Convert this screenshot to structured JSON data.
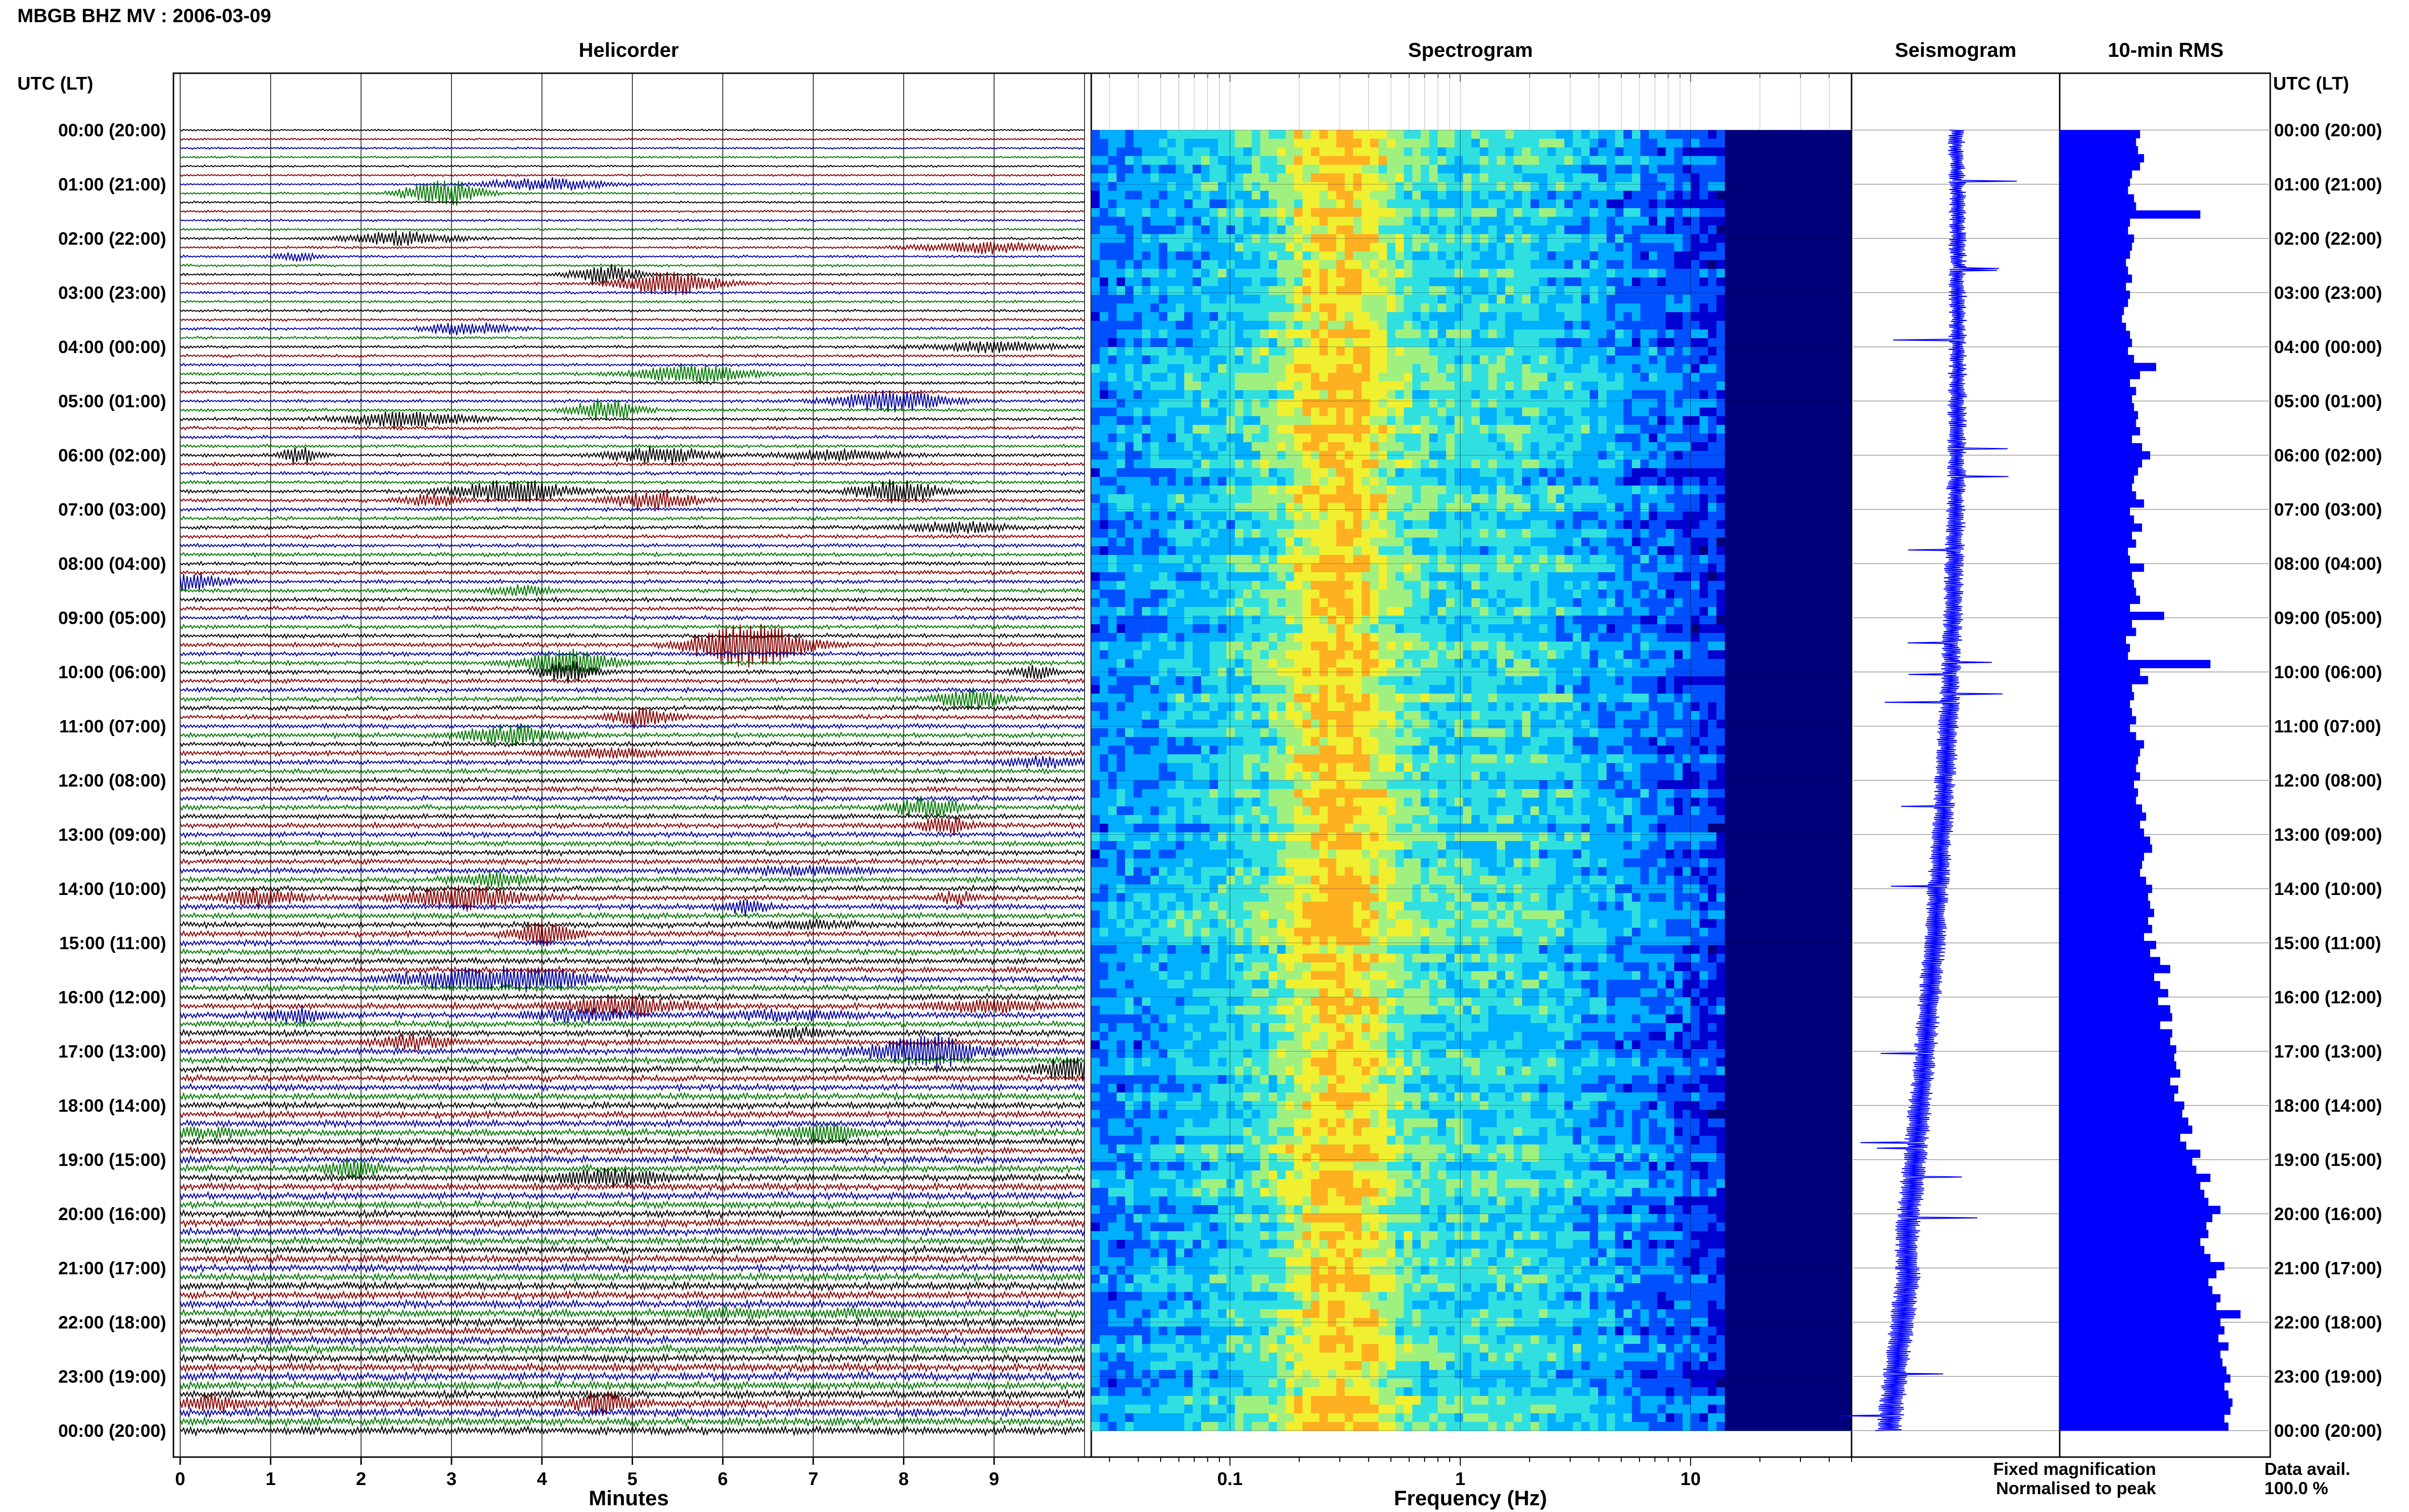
{
  "page": {
    "title": "MBGB BHZ MV : 2006-03-09",
    "utc_label_left": "UTC (LT)",
    "utc_label_right": "UTC (LT)"
  },
  "chart_data": [
    {
      "type": "line",
      "panel": "helicorder",
      "title": "Helicorder",
      "xlabel": "Minutes",
      "xlim": [
        0,
        10
      ],
      "x_ticks": [
        "0",
        "1",
        "2",
        "3",
        "4",
        "5",
        "6",
        "7",
        "8",
        "9"
      ],
      "y_tick_labels": [
        "00:00 (20:00)",
        "01:00 (21:00)",
        "02:00 (22:00)",
        "03:00 (23:00)",
        "04:00 (00:00)",
        "05:00 (01:00)",
        "06:00 (02:00)",
        "07:00 (03:00)",
        "08:00 (04:00)",
        "09:00 (05:00)",
        "10:00 (06:00)",
        "11:00 (07:00)",
        "12:00 (08:00)",
        "13:00 (09:00)",
        "14:00 (10:00)",
        "15:00 (11:00)",
        "16:00 (12:00)",
        "17:00 (13:00)",
        "18:00 (14:00)",
        "19:00 (15:00)",
        "20:00 (16:00)",
        "21:00 (17:00)",
        "22:00 (18:00)",
        "23:00 (19:00)",
        "00:00 (20:00)"
      ],
      "trace_colors": [
        "#000000",
        "#8b0000",
        "#0000a0",
        "#007a00"
      ],
      "lines_per_hour": 6,
      "grid": true
    },
    {
      "type": "heatmap",
      "panel": "spectrogram",
      "title": "Spectrogram",
      "xlabel": "Frequency (Hz)",
      "x_scale": "log",
      "xlim": [
        0.025,
        50
      ],
      "x_tick_labels": [
        "0.1",
        "1",
        "10"
      ],
      "x_tick_values": [
        0.1,
        1,
        10
      ],
      "colors": [
        "#00007a",
        "#0000d0",
        "#0050ff",
        "#00b0ff",
        "#30e0e0",
        "#a0f080",
        "#f0f030",
        "#ffb020"
      ]
    },
    {
      "type": "line",
      "panel": "seismogram",
      "title": "Seismogram",
      "color": "#0000ff"
    },
    {
      "type": "bar",
      "panel": "rms",
      "title": "10-min RMS",
      "color": "#0000ff",
      "values": [
        40,
        38,
        39,
        42,
        40,
        36,
        35,
        34,
        37,
        38,
        70,
        35,
        34,
        37,
        36,
        35,
        33,
        34,
        36,
        33,
        35,
        34,
        32,
        31,
        33,
        35,
        36,
        34,
        37,
        48,
        40,
        35,
        38,
        36,
        37,
        39,
        38,
        40,
        36,
        41,
        45,
        41,
        39,
        37,
        36,
        38,
        42,
        35,
        37,
        41,
        36,
        38,
        34,
        35,
        42,
        36,
        37,
        38,
        40,
        35,
        52,
        36,
        38,
        33,
        35,
        34,
        75,
        40,
        44,
        36,
        37,
        35,
        36,
        38,
        35,
        38,
        42,
        40,
        39,
        38,
        40,
        37,
        39,
        38,
        41,
        43,
        40,
        42,
        45,
        46,
        42,
        41,
        40,
        43,
        46,
        44,
        45,
        47,
        44,
        46,
        42,
        48,
        45,
        50,
        55,
        47,
        50,
        54,
        49,
        55,
        56,
        50,
        56,
        55,
        58,
        57,
        58,
        60,
        55,
        59,
        57,
        62,
        61,
        64,
        66,
        60,
        63,
        70,
        66,
        68,
        75,
        70,
        72,
        74,
        80,
        76,
        73,
        74,
        70,
        72,
        75,
        82,
        78,
        74,
        76,
        80,
        78,
        90,
        80,
        82,
        79,
        84,
        80,
        81,
        83,
        85,
        82,
        84,
        86,
        85,
        82,
        84
      ],
      "xlim": [
        0,
        100
      ]
    }
  ],
  "legend": {
    "fixed": "Fixed magnification",
    "fixed_color": "#0000ff",
    "normalised": "Normalised to peak",
    "normalised_color": "#ff0000",
    "avail_label": "Data avail.",
    "avail_value": "100.0 %"
  }
}
